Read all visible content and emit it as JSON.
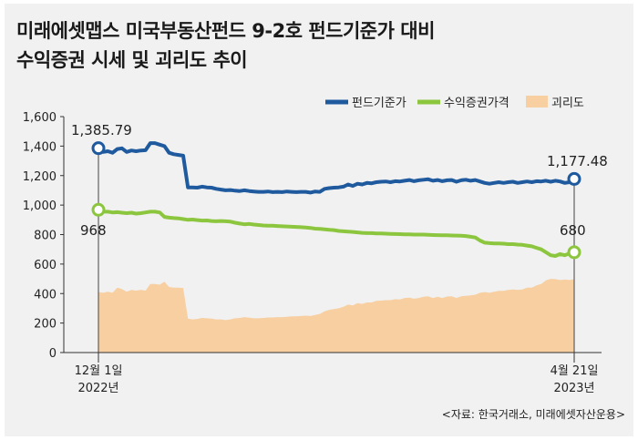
{
  "title_lines": [
    "미래에셋맵스 미국부동산펀드 9-2호 펀드기준가 대비",
    "수익증권 시세 및 괴리도 추이"
  ],
  "source": "<자료: 한국거래소, 미래에셋자산운용>",
  "colors": {
    "fund": "#1f5a9e",
    "stock": "#8cc63f",
    "gap": "#f7cfa1",
    "axis": "#333333",
    "text": "#222222"
  },
  "chart_data": {
    "type": "line",
    "title": "미래에셋맵스 미국부동산펀드 9-2호 펀드기준가 대비 수익증권 시세 및 괴리도 추이",
    "xlabel": "",
    "ylabel": "",
    "ylim": [
      0,
      1600
    ],
    "y_ticks": [
      "0",
      "200",
      "400",
      "600",
      "800",
      "1,000",
      "1,200",
      "1,400",
      "1,600"
    ],
    "x_ticks": [
      {
        "line1": "12월 1일",
        "line2": "2022년"
      },
      {
        "line1": "4월 21일",
        "line2": "2023년"
      }
    ],
    "legend_position": "top-right",
    "legend": [
      "펀드기준가",
      "수익증권가격",
      "괴리도"
    ],
    "series": [
      {
        "name": "펀드기준가",
        "kind": "line",
        "values": [
          1385.79,
          1360,
          1365,
          1355,
          1380,
          1385,
          1360,
          1370,
          1365,
          1370,
          1372,
          1420,
          1420,
          1410,
          1400,
          1355,
          1345,
          1340,
          1335,
          1120,
          1120,
          1118,
          1125,
          1120,
          1118,
          1110,
          1105,
          1100,
          1102,
          1098,
          1095,
          1100,
          1095,
          1092,
          1090,
          1090,
          1092,
          1088,
          1090,
          1088,
          1092,
          1090,
          1088,
          1090,
          1090,
          1085,
          1092,
          1090,
          1110,
          1115,
          1118,
          1120,
          1125,
          1140,
          1130,
          1145,
          1140,
          1150,
          1148,
          1155,
          1158,
          1160,
          1155,
          1162,
          1160,
          1165,
          1170,
          1162,
          1168,
          1172,
          1175,
          1165,
          1170,
          1162,
          1168,
          1170,
          1158,
          1168,
          1172,
          1165,
          1170,
          1160,
          1150,
          1145,
          1150,
          1155,
          1150,
          1155,
          1158,
          1150,
          1155,
          1160,
          1155,
          1162,
          1160,
          1165,
          1158,
          1165,
          1160,
          1150,
          1155,
          1177.48
        ],
        "end_label_first": "1,385.79",
        "end_label_last": "1,177.48"
      },
      {
        "name": "수익증권가격",
        "kind": "line",
        "values": [
          968,
          955,
          955,
          950,
          952,
          948,
          945,
          948,
          942,
          945,
          950,
          955,
          955,
          950,
          920,
          915,
          912,
          910,
          905,
          900,
          902,
          898,
          895,
          896,
          892,
          890,
          892,
          890,
          888,
          880,
          875,
          870,
          872,
          868,
          865,
          862,
          860,
          860,
          858,
          856,
          855,
          853,
          852,
          850,
          848,
          845,
          840,
          838,
          835,
          832,
          830,
          825,
          822,
          820,
          818,
          815,
          812,
          810,
          810,
          808,
          808,
          806,
          805,
          804,
          803,
          802,
          802,
          800,
          800,
          800,
          798,
          797,
          796,
          795,
          795,
          794,
          793,
          792,
          790,
          785,
          780,
          760,
          745,
          742,
          740,
          740,
          738,
          735,
          735,
          732,
          730,
          725,
          720,
          710,
          700,
          680,
          660,
          655,
          668,
          660,
          672,
          680
        ],
        "end_label_first": "968",
        "end_label_last": "680"
      },
      {
        "name": "괴리도",
        "kind": "area",
        "values": [
          410,
          405,
          412,
          405,
          440,
          430,
          412,
          425,
          420,
          425,
          420,
          465,
          465,
          460,
          480,
          445,
          440,
          440,
          438,
          230,
          225,
          228,
          235,
          232,
          230,
          225,
          225,
          220,
          225,
          232,
          235,
          240,
          236,
          232,
          232,
          235,
          238,
          238,
          240,
          240,
          242,
          245,
          245,
          248,
          250,
          248,
          255,
          262,
          280,
          290,
          295,
          300,
          310,
          325,
          320,
          335,
          330,
          340,
          340,
          350,
          352,
          355,
          355,
          362,
          360,
          370,
          372,
          365,
          370,
          378,
          382,
          370,
          378,
          370,
          380,
          382,
          370,
          382,
          385,
          388,
          392,
          405,
          410,
          405,
          412,
          418,
          418,
          425,
          428,
          425,
          428,
          440,
          440,
          455,
          465,
          490,
          500,
          498,
          492,
          495,
          492,
          497
        ]
      }
    ]
  }
}
